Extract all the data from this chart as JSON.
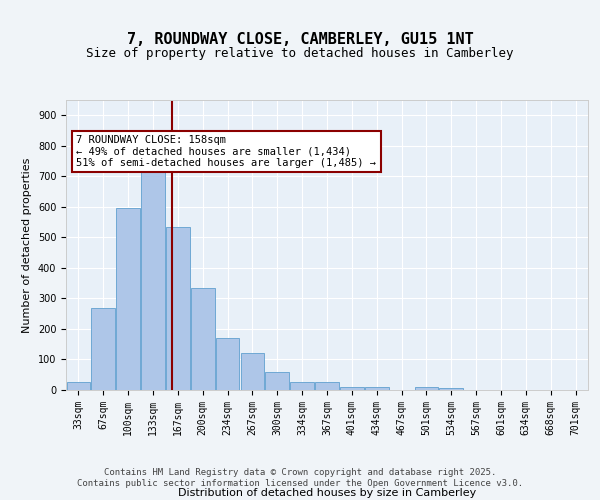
{
  "title": "7, ROUNDWAY CLOSE, CAMBERLEY, GU15 1NT",
  "subtitle": "Size of property relative to detached houses in Camberley",
  "xlabel": "Distribution of detached houses by size in Camberley",
  "ylabel": "Number of detached properties",
  "bar_labels": [
    "33sqm",
    "67sqm",
    "100sqm",
    "133sqm",
    "167sqm",
    "200sqm",
    "234sqm",
    "267sqm",
    "300sqm",
    "334sqm",
    "367sqm",
    "401sqm",
    "434sqm",
    "467sqm",
    "501sqm",
    "534sqm",
    "567sqm",
    "601sqm",
    "634sqm",
    "668sqm",
    "701sqm"
  ],
  "bar_values": [
    25,
    270,
    595,
    750,
    535,
    335,
    170,
    120,
    60,
    25,
    25,
    10,
    10,
    0,
    10,
    5,
    0,
    0,
    0,
    0,
    0
  ],
  "bar_color": "#aec6e8",
  "bar_edgecolor": "#6fa8d4",
  "background_color": "#e8f0f8",
  "grid_color": "#ffffff",
  "vline_x": 4,
  "vline_color": "#8b0000",
  "annotation_text": "7 ROUNDWAY CLOSE: 158sqm\n← 49% of detached houses are smaller (1,434)\n51% of semi-detached houses are larger (1,485) →",
  "annotation_box_color": "#ffffff",
  "annotation_box_edgecolor": "#8b0000",
  "ylim": [
    0,
    950
  ],
  "yticks": [
    0,
    100,
    200,
    300,
    400,
    500,
    600,
    700,
    800,
    900
  ],
  "footer_text": "Contains HM Land Registry data © Crown copyright and database right 2025.\nContains public sector information licensed under the Open Government Licence v3.0.",
  "title_fontsize": 11,
  "subtitle_fontsize": 9,
  "axis_label_fontsize": 8,
  "tick_fontsize": 7,
  "annotation_fontsize": 7.5,
  "footer_fontsize": 6.5
}
